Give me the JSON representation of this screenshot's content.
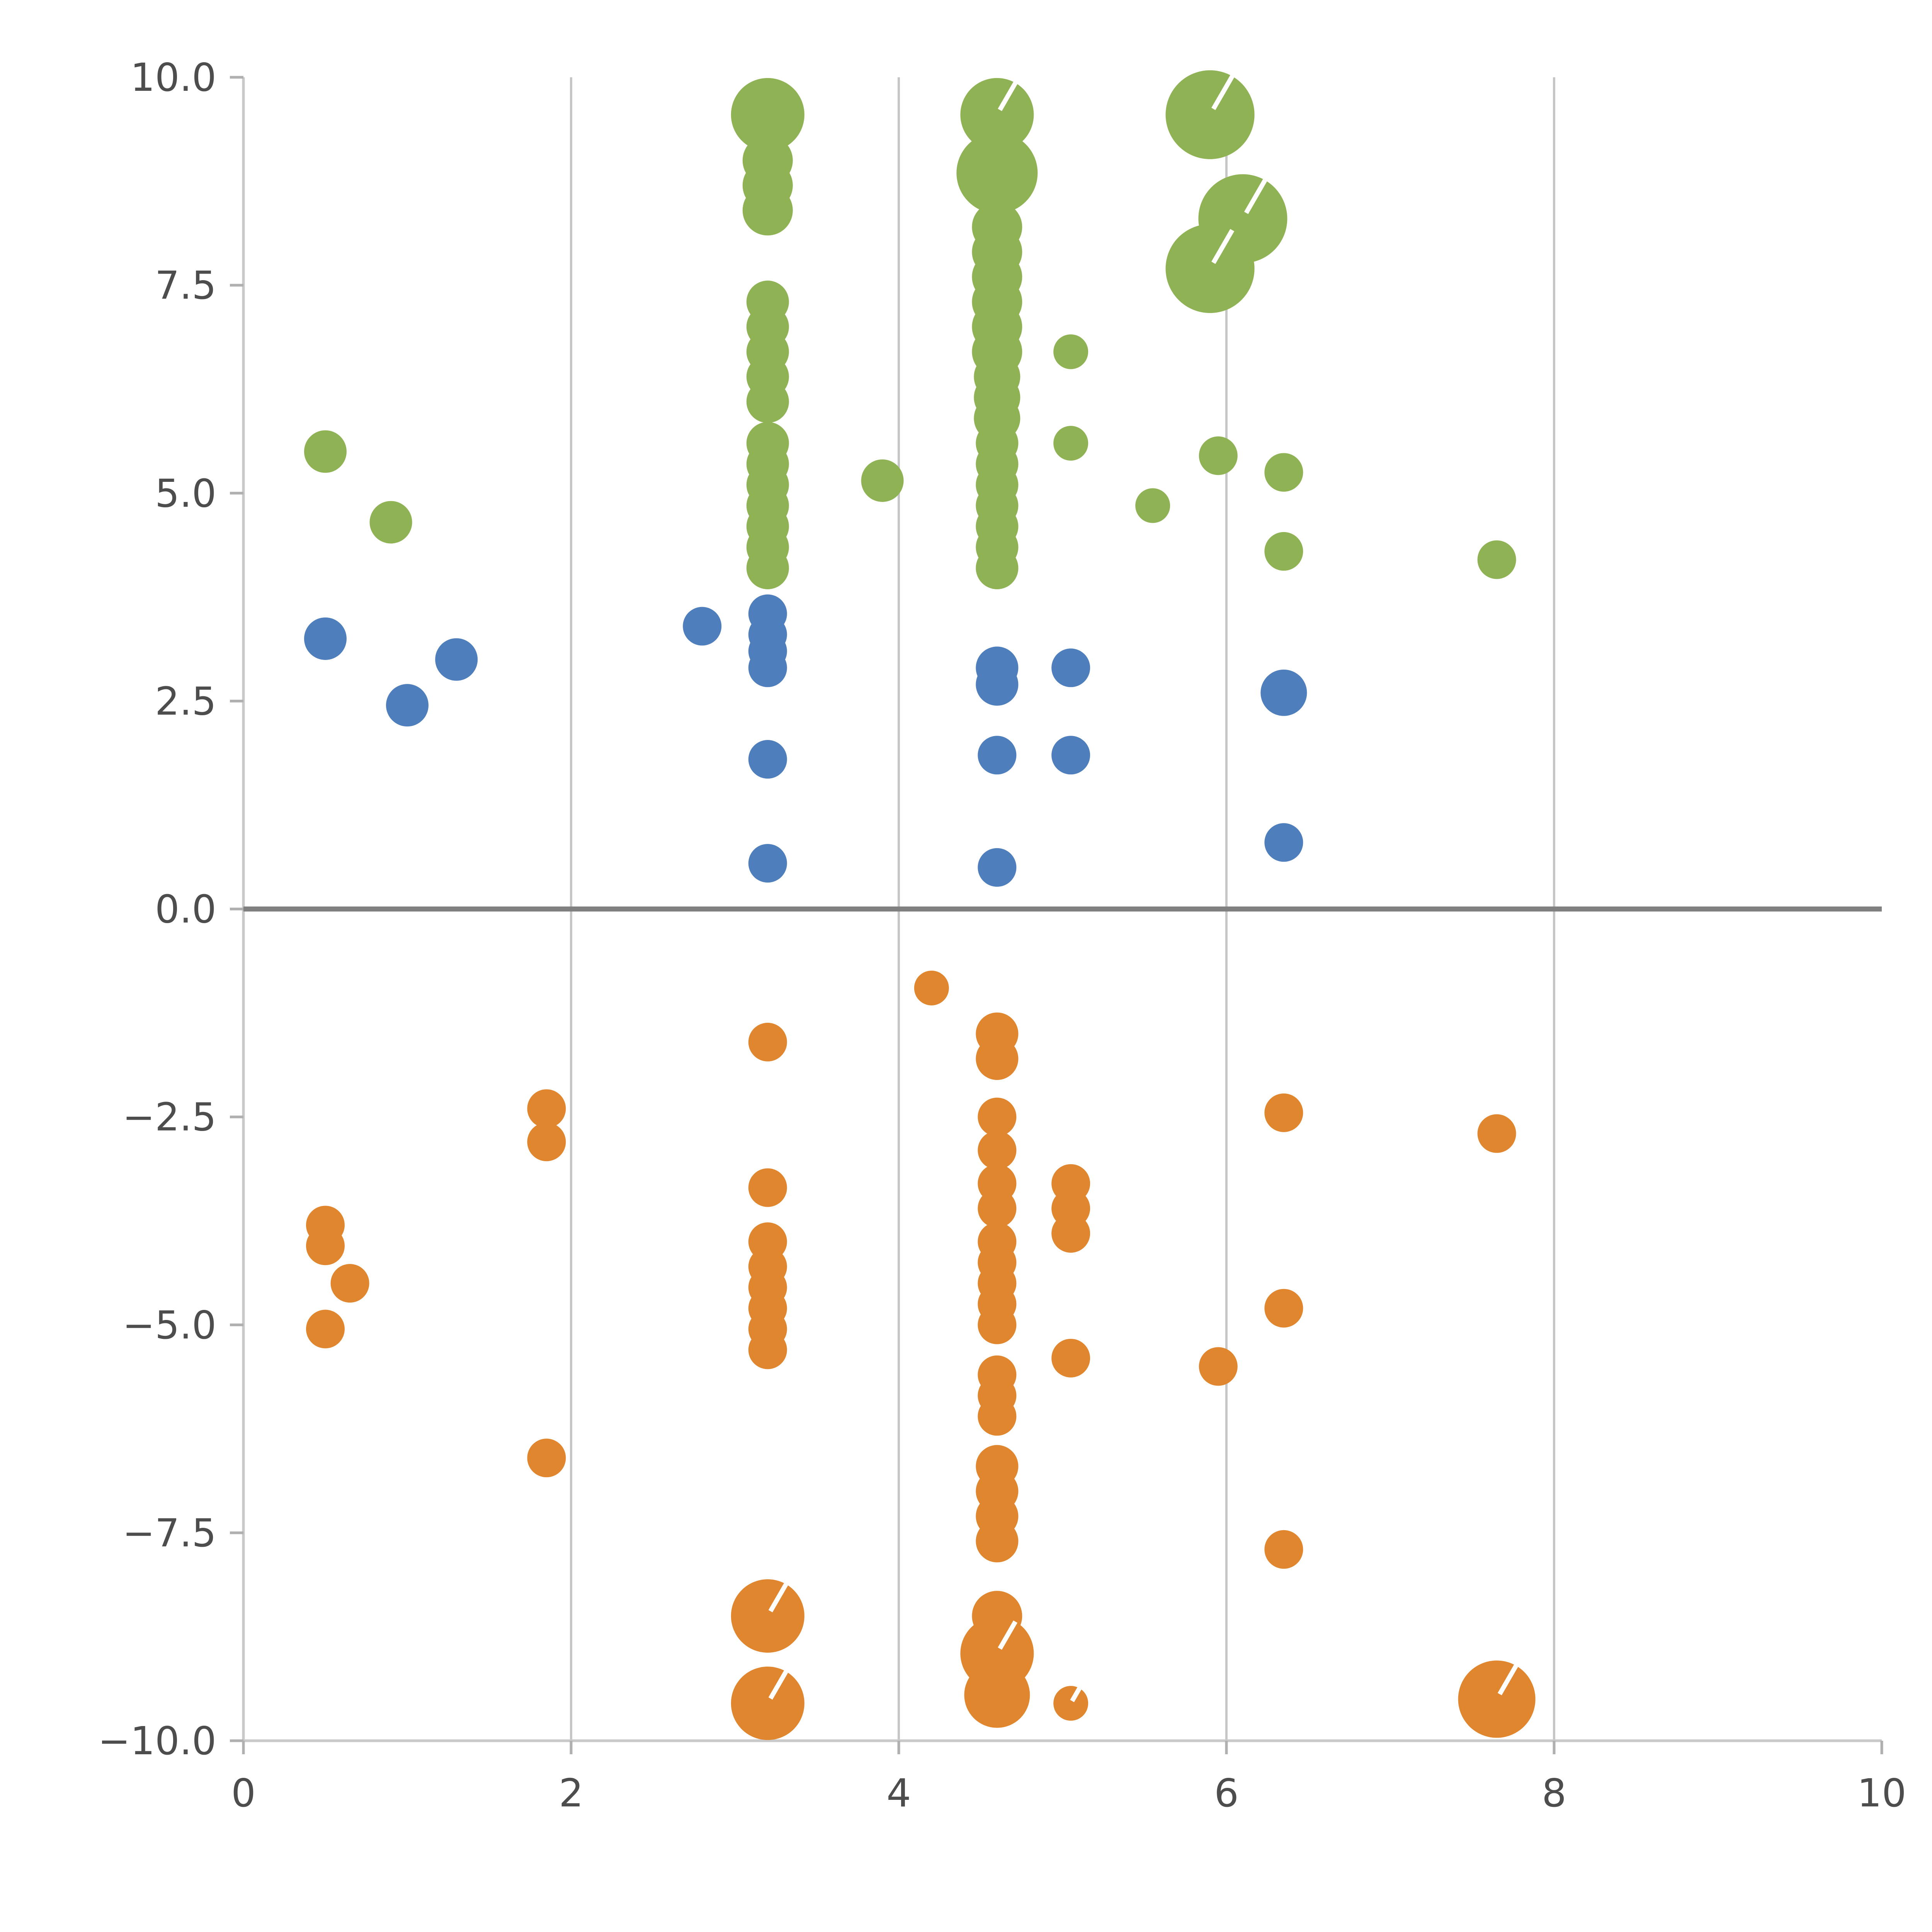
{
  "page": {
    "background_color": "#ffffff"
  },
  "chart_data": {
    "type": "scatter",
    "title": "",
    "xlabel": "",
    "ylabel": "",
    "xlim": [
      0,
      10
    ],
    "ylim": [
      -10,
      10
    ],
    "grid": {
      "vertical_at": [
        2,
        4,
        6,
        8
      ],
      "color": "#c6c6c6"
    },
    "zero_line": {
      "y": 0,
      "color": "#808080"
    },
    "axis": {
      "spine_color": "#c9c9c9",
      "tick_color": "#b0b0b0",
      "tick_label_color": "#4d4d4d"
    },
    "legend": "none",
    "x_ticks": {
      "values": [
        0,
        2,
        4,
        6,
        8,
        10
      ],
      "labels": [
        "0",
        "2",
        "4",
        "6",
        "8",
        "10"
      ]
    },
    "y_ticks": {
      "values": [
        -10,
        -7.5,
        -5,
        -2.5,
        0,
        2.5,
        5,
        7.5,
        10
      ],
      "labels": [
        "−10.0",
        "−7.5",
        "−5.0",
        "−2.5",
        "0.0",
        "2.5",
        "5.0",
        "7.5",
        "10.0"
      ]
    },
    "point_format": "[x, y, radius_viewbox_px, white_notch_flag]",
    "series": [
      {
        "name": "green",
        "color": "#8FB254",
        "points": [
          [
            0.5,
            5.5,
            11,
            0
          ],
          [
            0.9,
            4.65,
            11,
            0
          ],
          [
            3.2,
            9.55,
            19,
            0
          ],
          [
            3.2,
            9.0,
            13,
            0
          ],
          [
            3.2,
            8.7,
            13,
            0
          ],
          [
            3.2,
            8.4,
            13,
            0
          ],
          [
            3.2,
            7.3,
            11,
            0
          ],
          [
            3.2,
            7.0,
            11,
            0
          ],
          [
            3.2,
            6.7,
            11,
            0
          ],
          [
            3.2,
            6.4,
            11,
            0
          ],
          [
            3.2,
            6.1,
            11,
            0
          ],
          [
            3.2,
            5.6,
            11,
            0
          ],
          [
            3.2,
            5.35,
            11,
            0
          ],
          [
            3.2,
            5.1,
            11,
            0
          ],
          [
            3.2,
            4.85,
            11,
            0
          ],
          [
            3.2,
            4.6,
            11,
            0
          ],
          [
            3.2,
            4.35,
            11,
            0
          ],
          [
            3.2,
            4.1,
            11,
            0
          ],
          [
            3.9,
            5.15,
            11,
            0
          ],
          [
            4.6,
            9.55,
            19,
            1
          ],
          [
            4.6,
            8.85,
            21,
            0
          ],
          [
            4.6,
            8.2,
            13,
            0
          ],
          [
            4.6,
            7.9,
            13,
            0
          ],
          [
            4.6,
            7.6,
            13,
            0
          ],
          [
            4.6,
            7.3,
            13,
            0
          ],
          [
            4.6,
            7.0,
            13,
            0
          ],
          [
            4.6,
            6.7,
            13,
            0
          ],
          [
            4.6,
            6.4,
            12,
            0
          ],
          [
            4.6,
            6.15,
            12,
            0
          ],
          [
            4.6,
            5.9,
            12,
            0
          ],
          [
            4.6,
            5.6,
            11,
            0
          ],
          [
            4.6,
            5.35,
            11,
            0
          ],
          [
            4.6,
            5.1,
            11,
            0
          ],
          [
            4.6,
            4.85,
            11,
            0
          ],
          [
            4.6,
            4.6,
            11,
            0
          ],
          [
            4.6,
            4.35,
            11,
            0
          ],
          [
            4.6,
            4.1,
            11,
            0
          ],
          [
            5.05,
            6.7,
            9,
            0
          ],
          [
            5.05,
            5.6,
            9,
            0
          ],
          [
            5.55,
            4.85,
            9,
            0
          ],
          [
            5.9,
            9.55,
            23,
            1
          ],
          [
            6.1,
            8.3,
            23,
            1
          ],
          [
            5.9,
            7.7,
            23,
            1
          ],
          [
            5.95,
            5.45,
            10,
            0
          ],
          [
            6.35,
            5.25,
            10,
            0
          ],
          [
            6.35,
            4.3,
            10,
            0
          ],
          [
            7.65,
            4.2,
            10,
            0
          ]
        ]
      },
      {
        "name": "blue",
        "color": "#4E7EBB",
        "points": [
          [
            0.5,
            3.25,
            11,
            0
          ],
          [
            1.0,
            2.45,
            11,
            0
          ],
          [
            1.3,
            3.0,
            11,
            0
          ],
          [
            2.8,
            3.4,
            10,
            0
          ],
          [
            3.2,
            3.55,
            10,
            0
          ],
          [
            3.2,
            3.3,
            10,
            0
          ],
          [
            3.2,
            3.1,
            10,
            0
          ],
          [
            3.2,
            2.9,
            10,
            0
          ],
          [
            3.2,
            1.8,
            10,
            0
          ],
          [
            3.2,
            0.55,
            10,
            0
          ],
          [
            4.6,
            2.9,
            11,
            0
          ],
          [
            4.6,
            2.7,
            11,
            0
          ],
          [
            4.6,
            1.85,
            10,
            0
          ],
          [
            4.6,
            0.5,
            10,
            0
          ],
          [
            5.05,
            2.9,
            10,
            0
          ],
          [
            5.05,
            1.85,
            10,
            0
          ],
          [
            6.35,
            2.6,
            12,
            0
          ],
          [
            6.35,
            0.8,
            10,
            0
          ]
        ]
      },
      {
        "name": "orange",
        "color": "#E0862F",
        "points": [
          [
            4.2,
            -0.95,
            9,
            0
          ],
          [
            3.2,
            -1.6,
            10,
            0
          ],
          [
            4.6,
            -1.5,
            11,
            0
          ],
          [
            4.6,
            -1.8,
            11,
            0
          ],
          [
            1.85,
            -2.4,
            10,
            0
          ],
          [
            1.85,
            -2.8,
            10,
            0
          ],
          [
            4.6,
            -2.5,
            10,
            0
          ],
          [
            4.6,
            -2.9,
            10,
            0
          ],
          [
            6.35,
            -2.45,
            10,
            0
          ],
          [
            7.65,
            -2.7,
            10,
            0
          ],
          [
            3.2,
            -3.35,
            10,
            0
          ],
          [
            4.6,
            -3.3,
            10,
            0
          ],
          [
            4.6,
            -3.6,
            10,
            0
          ],
          [
            5.05,
            -3.3,
            10,
            0
          ],
          [
            5.05,
            -3.6,
            10,
            0
          ],
          [
            5.05,
            -3.9,
            10,
            0
          ],
          [
            0.5,
            -3.8,
            10,
            0
          ],
          [
            0.5,
            -4.05,
            10,
            0
          ],
          [
            0.65,
            -4.5,
            10,
            0
          ],
          [
            0.5,
            -5.05,
            10,
            0
          ],
          [
            3.2,
            -4.0,
            10,
            0
          ],
          [
            3.2,
            -4.3,
            10,
            0
          ],
          [
            3.2,
            -4.55,
            10,
            0
          ],
          [
            3.2,
            -4.8,
            10,
            0
          ],
          [
            3.2,
            -5.05,
            10,
            0
          ],
          [
            3.2,
            -5.3,
            10,
            0
          ],
          [
            4.6,
            -4.0,
            10,
            0
          ],
          [
            4.6,
            -4.25,
            10,
            0
          ],
          [
            4.6,
            -4.5,
            10,
            0
          ],
          [
            4.6,
            -4.75,
            10,
            0
          ],
          [
            4.6,
            -5.0,
            10,
            0
          ],
          [
            6.35,
            -4.8,
            10,
            0
          ],
          [
            5.05,
            -5.4,
            10,
            0
          ],
          [
            5.95,
            -5.5,
            10,
            0
          ],
          [
            4.6,
            -5.6,
            10,
            0
          ],
          [
            4.6,
            -5.85,
            10,
            0
          ],
          [
            4.6,
            -6.1,
            10,
            0
          ],
          [
            1.85,
            -6.6,
            10,
            0
          ],
          [
            4.6,
            -6.7,
            11,
            0
          ],
          [
            4.6,
            -7.0,
            11,
            0
          ],
          [
            4.6,
            -7.3,
            11,
            0
          ],
          [
            4.6,
            -7.6,
            11,
            0
          ],
          [
            6.35,
            -7.7,
            10,
            0
          ],
          [
            3.2,
            -8.5,
            19,
            1
          ],
          [
            3.2,
            -9.55,
            19,
            1
          ],
          [
            4.6,
            -8.5,
            13,
            0
          ],
          [
            4.6,
            -8.95,
            19,
            1
          ],
          [
            4.6,
            -9.45,
            17,
            0
          ],
          [
            5.05,
            -9.55,
            9,
            1
          ],
          [
            7.65,
            -9.5,
            20,
            1
          ]
        ]
      }
    ]
  }
}
